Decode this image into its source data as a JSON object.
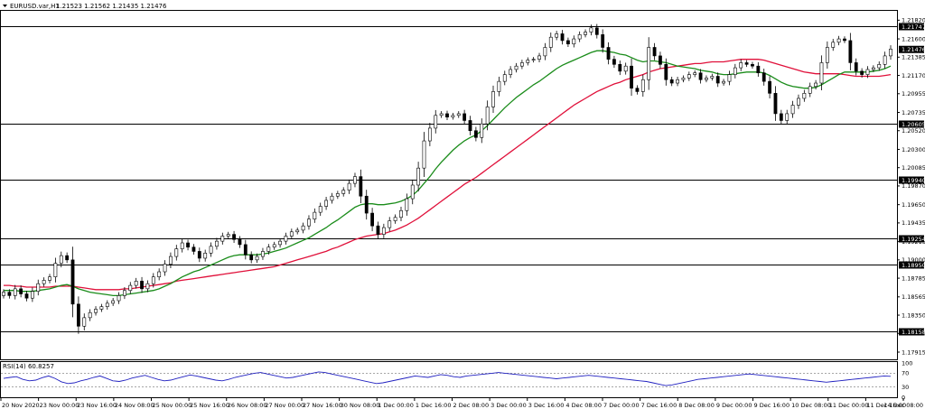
{
  "header": {
    "symbol": "EURUSD.var,H1",
    "ohlc": "1.21523 1.21562 1.21435 1.21476"
  },
  "indicator": {
    "label": "RSI(14) 60.8257",
    "scale": [
      "100",
      "70",
      "30",
      "0"
    ],
    "levels": [
      70,
      30
    ],
    "values": [
      55,
      58,
      60,
      52,
      48,
      50,
      57,
      62,
      55,
      45,
      40,
      42,
      48,
      52,
      58,
      62,
      55,
      48,
      46,
      50,
      56,
      60,
      64,
      58,
      52,
      48,
      50,
      55,
      60,
      65,
      62,
      58,
      54,
      50,
      48,
      52,
      58,
      62,
      66,
      70,
      72,
      68,
      64,
      60,
      56,
      58,
      62,
      66,
      70,
      74,
      72,
      68,
      64,
      60,
      56,
      52,
      48,
      44,
      40,
      42,
      46,
      50,
      54,
      58,
      62,
      60,
      58,
      62,
      66,
      64,
      60,
      58,
      62,
      64,
      66,
      68,
      70,
      72,
      70,
      68,
      66,
      64,
      62,
      60,
      58,
      56,
      54,
      56,
      58,
      60,
      62,
      64,
      62,
      60,
      58,
      56,
      54,
      52,
      50,
      48,
      46,
      42,
      38,
      34,
      36,
      40,
      44,
      48,
      52,
      54,
      56,
      58,
      60,
      62,
      64,
      66,
      68,
      66,
      64,
      62,
      60,
      58,
      56,
      54,
      52,
      50,
      48,
      46,
      44,
      46,
      48,
      50,
      52,
      54,
      56,
      58,
      60,
      62,
      61
    ]
  },
  "colors": {
    "ma_green": "#1a8c1a",
    "ma_red": "#e0103a",
    "rsi": "#2020c0",
    "level_box": "#000000",
    "candle": "#000000"
  },
  "chart_data": {
    "type": "candlestick",
    "ylim": [
      1.1783,
      1.2193
    ],
    "y_ticks": [
      "1.21820",
      "1.21600",
      "1.21385",
      "1.21170",
      "1.20955",
      "1.20735",
      "1.20520",
      "1.20300",
      "1.20085",
      "1.19870",
      "1.19650",
      "1.19435",
      "1.19215",
      "1.19000",
      "1.18785",
      "1.18565",
      "1.18350",
      "1.18135",
      "1.17915"
    ],
    "y_tick_values": [
      1.2182,
      1.216,
      1.21385,
      1.2117,
      1.20955,
      1.20735,
      1.2052,
      1.203,
      1.20085,
      1.1987,
      1.1965,
      1.19435,
      1.19215,
      1.19,
      1.18785,
      1.18565,
      1.1835,
      1.18135,
      1.17915
    ],
    "horizontal_levels": [
      {
        "label": "1.21747",
        "value": 1.21747
      },
      {
        "label": "1.20605",
        "value": 1.20605
      },
      {
        "label": "1.19940",
        "value": 1.1994
      },
      {
        "label": "1.19254",
        "value": 1.19254
      },
      {
        "label": "1.18950",
        "value": 1.1895
      },
      {
        "label": "1.18158",
        "value": 1.18158
      }
    ],
    "current_price": {
      "label": "1.21476",
      "value": 1.21476
    },
    "x_labels": [
      "20 Nov 2020",
      "23 Nov 00:00",
      "23 Nov 16:00",
      "24 Nov 08:00",
      "25 Nov 00:00",
      "25 Nov 16:00",
      "26 Nov 08:00",
      "27 Nov 00:00",
      "27 Nov 16:00",
      "30 Nov 08:00",
      "1 Dec 00:00",
      "1 Dec 16:00",
      "2 Dec 08:00",
      "3 Dec 00:00",
      "3 Dec 16:00",
      "4 Dec 08:00",
      "7 Dec 00:00",
      "7 Dec 16:00",
      "8 Dec 08:00",
      "9 Dec 00:00",
      "9 Dec 16:00",
      "10 Dec 08:00",
      "11 Dec 00:00",
      "11 Dec 16:00",
      "14 Dec 08:00"
    ],
    "close": [
      1.1862,
      1.1858,
      1.1866,
      1.186,
      1.1855,
      1.1863,
      1.1872,
      1.1876,
      1.188,
      1.1896,
      1.1905,
      1.19,
      1.1848,
      1.1822,
      1.1832,
      1.1838,
      1.1842,
      1.1845,
      1.1849,
      1.1852,
      1.1858,
      1.1864,
      1.187,
      1.1875,
      1.1866,
      1.1872,
      1.188,
      1.1886,
      1.1895,
      1.1904,
      1.1913,
      1.192,
      1.1915,
      1.191,
      1.1902,
      1.1908,
      1.1916,
      1.1922,
      1.1928,
      1.193,
      1.1924,
      1.1918,
      1.1906,
      1.19,
      1.1904,
      1.191,
      1.1915,
      1.1918,
      1.1922,
      1.1928,
      1.1933,
      1.1935,
      1.194,
      1.1948,
      1.1956,
      1.1963,
      1.197,
      1.1975,
      1.1978,
      1.1982,
      1.199,
      1.1998,
      1.1975,
      1.1955,
      1.194,
      1.193,
      1.1938,
      1.1946,
      1.195,
      1.1958,
      1.1972,
      1.1988,
      1.2008,
      1.204,
      1.2055,
      1.207,
      1.2072,
      1.2068,
      1.207,
      1.2072,
      1.2064,
      1.2052,
      1.2044,
      1.206,
      1.208,
      1.2098,
      1.211,
      1.2118,
      1.2124,
      1.2128,
      1.2132,
      1.2135,
      1.2136,
      1.214,
      1.215,
      1.2162,
      1.2166,
      1.2158,
      1.2154,
      1.216,
      1.2165,
      1.2168,
      1.2173,
      1.2165,
      1.215,
      1.2136,
      1.213,
      1.2122,
      1.2128,
      1.2102,
      1.2098,
      1.2112,
      1.215,
      1.214,
      1.213,
      1.2112,
      1.2108,
      1.2112,
      1.2114,
      1.2118,
      1.212,
      1.2112,
      1.2114,
      1.2116,
      1.2108,
      1.211,
      1.2118,
      1.2126,
      1.2132,
      1.213,
      1.2128,
      1.212,
      1.211,
      1.2096,
      1.2072,
      1.2064,
      1.2072,
      1.2082,
      1.209,
      1.2096,
      1.2104,
      1.2108,
      1.2132,
      1.215,
      1.2156,
      1.216,
      1.2158,
      1.2132,
      1.2122,
      1.2118,
      1.2124,
      1.2126,
      1.213,
      1.214,
      1.2148
    ],
    "ma_fast_green": [
      1.1864,
      1.1864,
      1.1864,
      1.1863,
      1.1863,
      1.1863,
      1.1864,
      1.1865,
      1.1866,
      1.1868,
      1.187,
      1.1871,
      1.1869,
      1.1866,
      1.1864,
      1.1862,
      1.1861,
      1.186,
      1.1859,
      1.1858,
      1.1858,
      1.1859,
      1.186,
      1.1861,
      1.1862,
      1.1863,
      1.1864,
      1.1866,
      1.1869,
      1.1872,
      1.1876,
      1.188,
      1.1883,
      1.1886,
      1.1888,
      1.1891,
      1.1894,
      1.1897,
      1.19,
      1.1903,
      1.1905,
      1.1906,
      1.1906,
      1.1906,
      1.1906,
      1.1907,
      1.1908,
      1.191,
      1.1912,
      1.1914,
      1.1917,
      1.192,
      1.1923,
      1.1926,
      1.193,
      1.1934,
      1.1938,
      1.1943,
      1.1947,
      1.1952,
      1.1957,
      1.1962,
      1.1965,
      1.1966,
      1.1966,
      1.1965,
      1.1965,
      1.1966,
      1.1967,
      1.1969,
      1.1972,
      1.1976,
      1.1982,
      1.199,
      1.1998,
      1.2007,
      1.2015,
      1.2022,
      1.2029,
      1.2035,
      1.204,
      1.2044,
      1.2047,
      1.2052,
      1.2058,
      1.2065,
      1.2072,
      1.2079,
      1.2085,
      1.2091,
      1.2096,
      1.2101,
      1.2106,
      1.211,
      1.2115,
      1.212,
      1.2125,
      1.2129,
      1.2132,
      1.2135,
      1.2138,
      1.2141,
      1.2144,
      1.2146,
      1.2146,
      1.2145,
      1.2144,
      1.2142,
      1.2141,
      1.2138,
      1.2135,
      1.2133,
      1.2134,
      1.2134,
      1.2133,
      1.2132,
      1.213,
      1.2128,
      1.2127,
      1.2126,
      1.2125,
      1.2123,
      1.2122,
      1.2121,
      1.2119,
      1.2118,
      1.2118,
      1.2119,
      1.212,
      1.2121,
      1.2121,
      1.2121,
      1.212,
      1.2117,
      1.2113,
      1.2109,
      1.2106,
      1.2104,
      1.2103,
      1.2102,
      1.2102,
      1.2103,
      1.2106,
      1.211,
      1.2114,
      1.2118,
      1.2121,
      1.2121,
      1.2121,
      1.2121,
      1.2121,
      1.2122,
      1.2123,
      1.2125,
      1.2128
    ],
    "ma_slow_red": [
      1.187,
      1.187,
      1.1869,
      1.1869,
      1.1868,
      1.1868,
      1.1868,
      1.1868,
      1.1868,
      1.1869,
      1.1869,
      1.1869,
      1.1869,
      1.1868,
      1.1867,
      1.1866,
      1.1865,
      1.1865,
      1.1865,
      1.1865,
      1.1865,
      1.1866,
      1.1866,
      1.1867,
      1.1868,
      1.1869,
      1.187,
      1.1871,
      1.1872,
      1.1873,
      1.1875,
      1.1876,
      1.1877,
      1.1878,
      1.1879,
      1.188,
      1.1881,
      1.1882,
      1.1883,
      1.1884,
      1.1885,
      1.1886,
      1.1887,
      1.1888,
      1.1889,
      1.189,
      1.1891,
      1.1892,
      1.1894,
      1.1896,
      1.1898,
      1.19,
      1.1902,
      1.1904,
      1.1906,
      1.1908,
      1.191,
      1.1913,
      1.1915,
      1.1918,
      1.1921,
      1.1924,
      1.1926,
      1.1928,
      1.1929,
      1.193,
      1.1931,
      1.1933,
      1.1935,
      1.1938,
      1.1941,
      1.1945,
      1.1949,
      1.1954,
      1.1959,
      1.1964,
      1.1969,
      1.1974,
      1.1979,
      1.1984,
      1.1989,
      1.1993,
      1.1997,
      1.2002,
      1.2007,
      1.2012,
      1.2017,
      1.2022,
      1.2027,
      1.2032,
      1.2037,
      1.2042,
      1.2047,
      1.2052,
      1.2057,
      1.2062,
      1.2067,
      1.2072,
      1.2077,
      1.2082,
      1.2086,
      1.209,
      1.2094,
      1.2098,
      1.2101,
      1.2104,
      1.2107,
      1.2109,
      1.2112,
      1.2114,
      1.2116,
      1.2118,
      1.2121,
      1.2123,
      1.2125,
      1.2126,
      1.2127,
      1.2128,
      1.2129,
      1.213,
      1.2131,
      1.2131,
      1.2132,
      1.2133,
      1.2133,
      1.2133,
      1.2134,
      1.2135,
      1.2136,
      1.2136,
      1.2136,
      1.2136,
      1.2135,
      1.2133,
      1.2131,
      1.2129,
      1.2127,
      1.2125,
      1.2123,
      1.2121,
      1.212,
      1.2119,
      1.2119,
      1.2119,
      1.2119,
      1.2119,
      1.2118,
      1.2117,
      1.2116,
      1.2116,
      1.2116,
      1.2116,
      1.2116,
      1.2117,
      1.2118
    ]
  }
}
